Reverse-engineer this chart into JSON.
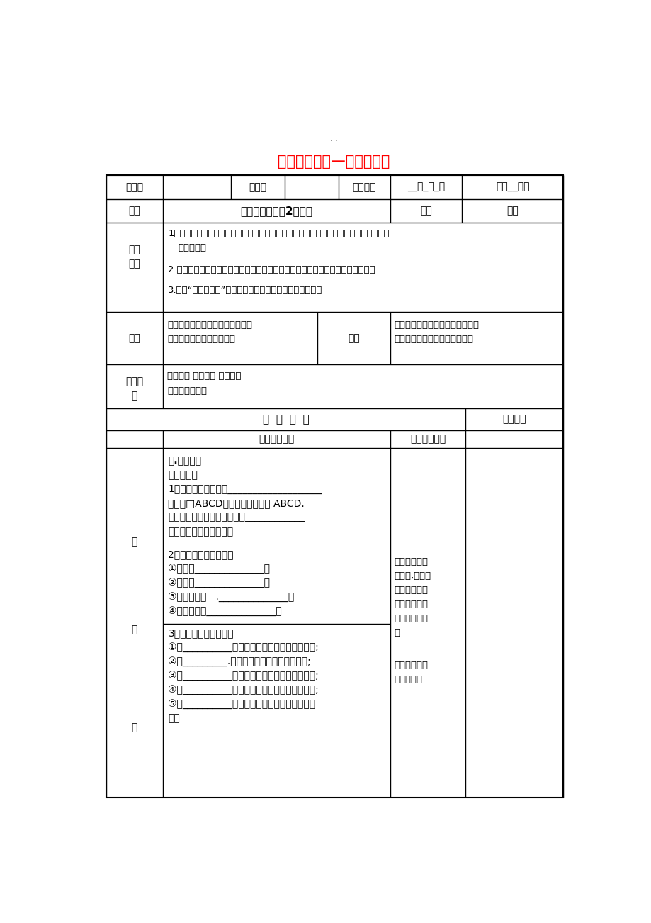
{
  "title": "中心对称图形—平形四边形",
  "title_color": "#FF0000",
  "bg_color": "#FFFFFF",
  "row1_c1": "主备人",
  "row1_c3": "用案人",
  "row1_c5": "授课时间",
  "row1_c6": "__年_月_日",
  "row1_c7": "总第__课时",
  "row2_c1": "课题",
  "row2_c2": "小结与思考（第2课时）",
  "row2_c3": "课型",
  "row2_c4": "新授",
  "row3_label1": "教学",
  "row3_label2": "目标",
  "row3_line1": "1、回顾、思考本章所学的知识及思想方法，并能用自己喜欢的方式进行梳理，使所学知",
  "row3_line2": "识系统化；",
  "row3_line3": "2.进一步丰富对平面图形相关知识的认识，能有条理的、清晰地阐述自己的观点；",
  "row3_line4": "3.通过“小结与思考”的教学，培养学生归纳、反思的意识；",
  "row4_label": "重点",
  "row4_left1": "以学生活动为主，让学生在反思与",
  "row4_left2": "交流的过程中回顾本章知识",
  "row4_mid": "难点",
  "row4_right1": "引导学生用自己喜欢的方式梳理本",
  "row4_right2": "章的知识，使所学内容系统化；",
  "row5_label1": "教法教",
  "row5_label2": "具",
  "row5_line1": "指导学生 解疑释惑 检测应用",
  "row5_line2": "教具：多媒体等",
  "hdr_main": "教  学  内  容",
  "hdr_side": "个案调整",
  "hdr_teacher": "教师主导活动",
  "hdr_student": "学生主体活动",
  "s1_title": "一.课前预习",
  "s1_l1": "平行四边形",
  "s1_l2": "1、平行四边形的义：___________________",
  "s1_l3": "记作：□ABCD，读作平行四边形 ABCD.",
  "s1_l4": "平行四边形是中心对称图形，____________",
  "s1_l5": "的交点是它的对称中心。",
  "s1_l6": "2、平行四边形的性质：",
  "s1_l7": "①、边：______________；",
  "s1_l8": "②、角：______________；",
  "s1_l9": "③、对角线：   .______________；",
  "s1_l10": "④、对称性：______________；",
  "right1_l1": "根据课前预习",
  "right1_l2": "的内容,学生自",
  "right1_l3": "主复习课前学",
  "right1_l4": "生自主复习归",
  "right1_l5": "纳本章知识结",
  "right1_l6": "构",
  "left_label1": "教",
  "left_label2": "学",
  "left_label3": "过",
  "s2_l1": "3、平行四边形的判定：",
  "s2_l2": "①、__________分别平行的四边形是平行四边形;",
  "s2_l3": "②、_________.别相等的四边形是平行四边形;",
  "s2_l4": "③、__________分别相等的四边形是平行四边形;",
  "s2_l5": "④、__________互相平分的四边形是平行四边形;",
  "s2_l6": "⑤、__________平行且相等的四边形是平行四边",
  "s2_l7": "形；",
  "right2_l1": "交流自己的复",
  "right2_l2": "习归纳成果"
}
